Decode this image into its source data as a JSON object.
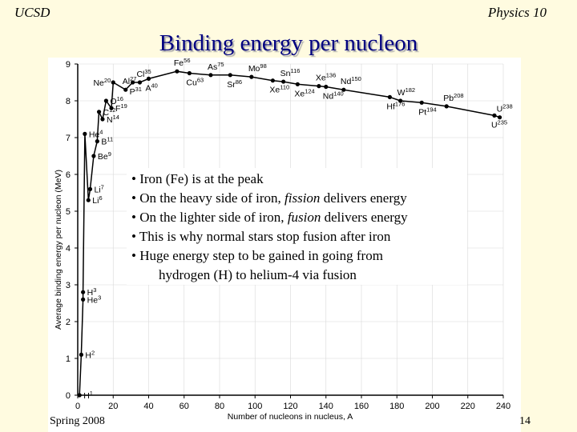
{
  "header": {
    "left": "UCSD",
    "right": "Physics 10"
  },
  "title": "Binding energy per nucleon",
  "footer": {
    "left": "Spring 2008",
    "page": "14"
  },
  "bullets": [
    {
      "prefix": "• Iron (Fe) is at the peak",
      "em": "",
      "suffix": ""
    },
    {
      "prefix": "• On the heavy side of iron, ",
      "em": "fission",
      "suffix": " delivers energy"
    },
    {
      "prefix": "• On the lighter side of iron, ",
      "em": "fusion",
      "suffix": " delivers energy"
    },
    {
      "prefix": "• This is why normal stars stop fusion after iron",
      "em": "",
      "suffix": ""
    },
    {
      "prefix": "• Huge energy step to be gained in going from",
      "em": "",
      "suffix": ""
    }
  ],
  "bullet_continuation": "hydrogen (H) to helium-4 via fusion",
  "chart_data": {
    "type": "line",
    "xlabel": "Number of nucleons in nucleus, A",
    "ylabel": "Average binding energy per nucleon (MeV)",
    "xlim": [
      0,
      240
    ],
    "ylim": [
      0,
      9
    ],
    "xticks": [
      0,
      20,
      40,
      60,
      80,
      100,
      120,
      140,
      160,
      180,
      200,
      220,
      240
    ],
    "yticks": [
      0,
      1,
      2,
      3,
      4,
      5,
      6,
      7,
      8,
      9
    ],
    "points": [
      {
        "x": 1,
        "y": 0.0,
        "label": "H",
        "sup": "1"
      },
      {
        "x": 2,
        "y": 1.1,
        "label": "H",
        "sup": "2"
      },
      {
        "x": 3,
        "y": 2.6,
        "label": "He",
        "sup": "3"
      },
      {
        "x": 3,
        "y": 2.8,
        "label": "H",
        "sup": "3"
      },
      {
        "x": 6,
        "y": 5.3,
        "label": "Li",
        "sup": "6"
      },
      {
        "x": 7,
        "y": 5.6,
        "label": "Li",
        "sup": "7"
      },
      {
        "x": 9,
        "y": 6.5,
        "label": "Be",
        "sup": "9"
      },
      {
        "x": 11,
        "y": 6.9,
        "label": "B",
        "sup": "11"
      },
      {
        "x": 4,
        "y": 7.1,
        "label": "He",
        "sup": "4"
      },
      {
        "x": 14,
        "y": 7.5,
        "label": "N",
        "sup": "14"
      },
      {
        "x": 12,
        "y": 7.7,
        "label": "C",
        "sup": "12"
      },
      {
        "x": 19,
        "y": 7.8,
        "label": "F",
        "sup": "19"
      },
      {
        "x": 16,
        "y": 8.0,
        "label": "O",
        "sup": "16"
      },
      {
        "x": 20,
        "y": 8.5,
        "label": "Ne",
        "sup": "20"
      },
      {
        "x": 27,
        "y": 8.3,
        "label": "Al",
        "sup": "27"
      },
      {
        "x": 31,
        "y": 8.5,
        "label": "P",
        "sup": "31"
      },
      {
        "x": 35,
        "y": 8.5,
        "label": "Cl",
        "sup": "35"
      },
      {
        "x": 40,
        "y": 8.6,
        "label": "A",
        "sup": "40"
      },
      {
        "x": 56,
        "y": 8.8,
        "label": "Fe",
        "sup": "56"
      },
      {
        "x": 63,
        "y": 8.75,
        "label": "Cu",
        "sup": "63"
      },
      {
        "x": 75,
        "y": 8.7,
        "label": "As",
        "sup": "75"
      },
      {
        "x": 86,
        "y": 8.7,
        "label": "Sr",
        "sup": "86"
      },
      {
        "x": 98,
        "y": 8.65,
        "label": "Mo",
        "sup": "98"
      },
      {
        "x": 110,
        "y": 8.55,
        "label": "Xe",
        "sup": "110"
      },
      {
        "x": 116,
        "y": 8.52,
        "label": "Sn",
        "sup": "116"
      },
      {
        "x": 124,
        "y": 8.45,
        "label": "Xe",
        "sup": "124"
      },
      {
        "x": 136,
        "y": 8.4,
        "label": "Xe",
        "sup": "136"
      },
      {
        "x": 140,
        "y": 8.38,
        "label": "Nd",
        "sup": "140"
      },
      {
        "x": 150,
        "y": 8.3,
        "label": "Nd",
        "sup": "150"
      },
      {
        "x": 176,
        "y": 8.1,
        "label": "Hf",
        "sup": "176"
      },
      {
        "x": 182,
        "y": 8.0,
        "label": "W",
        "sup": "182"
      },
      {
        "x": 194,
        "y": 7.95,
        "label": "Pt",
        "sup": "194"
      },
      {
        "x": 208,
        "y": 7.85,
        "label": "Pb",
        "sup": "208"
      },
      {
        "x": 235,
        "y": 7.6,
        "label": "U",
        "sup": "235"
      },
      {
        "x": 238,
        "y": 7.55,
        "label": "U",
        "sup": "238"
      }
    ]
  }
}
